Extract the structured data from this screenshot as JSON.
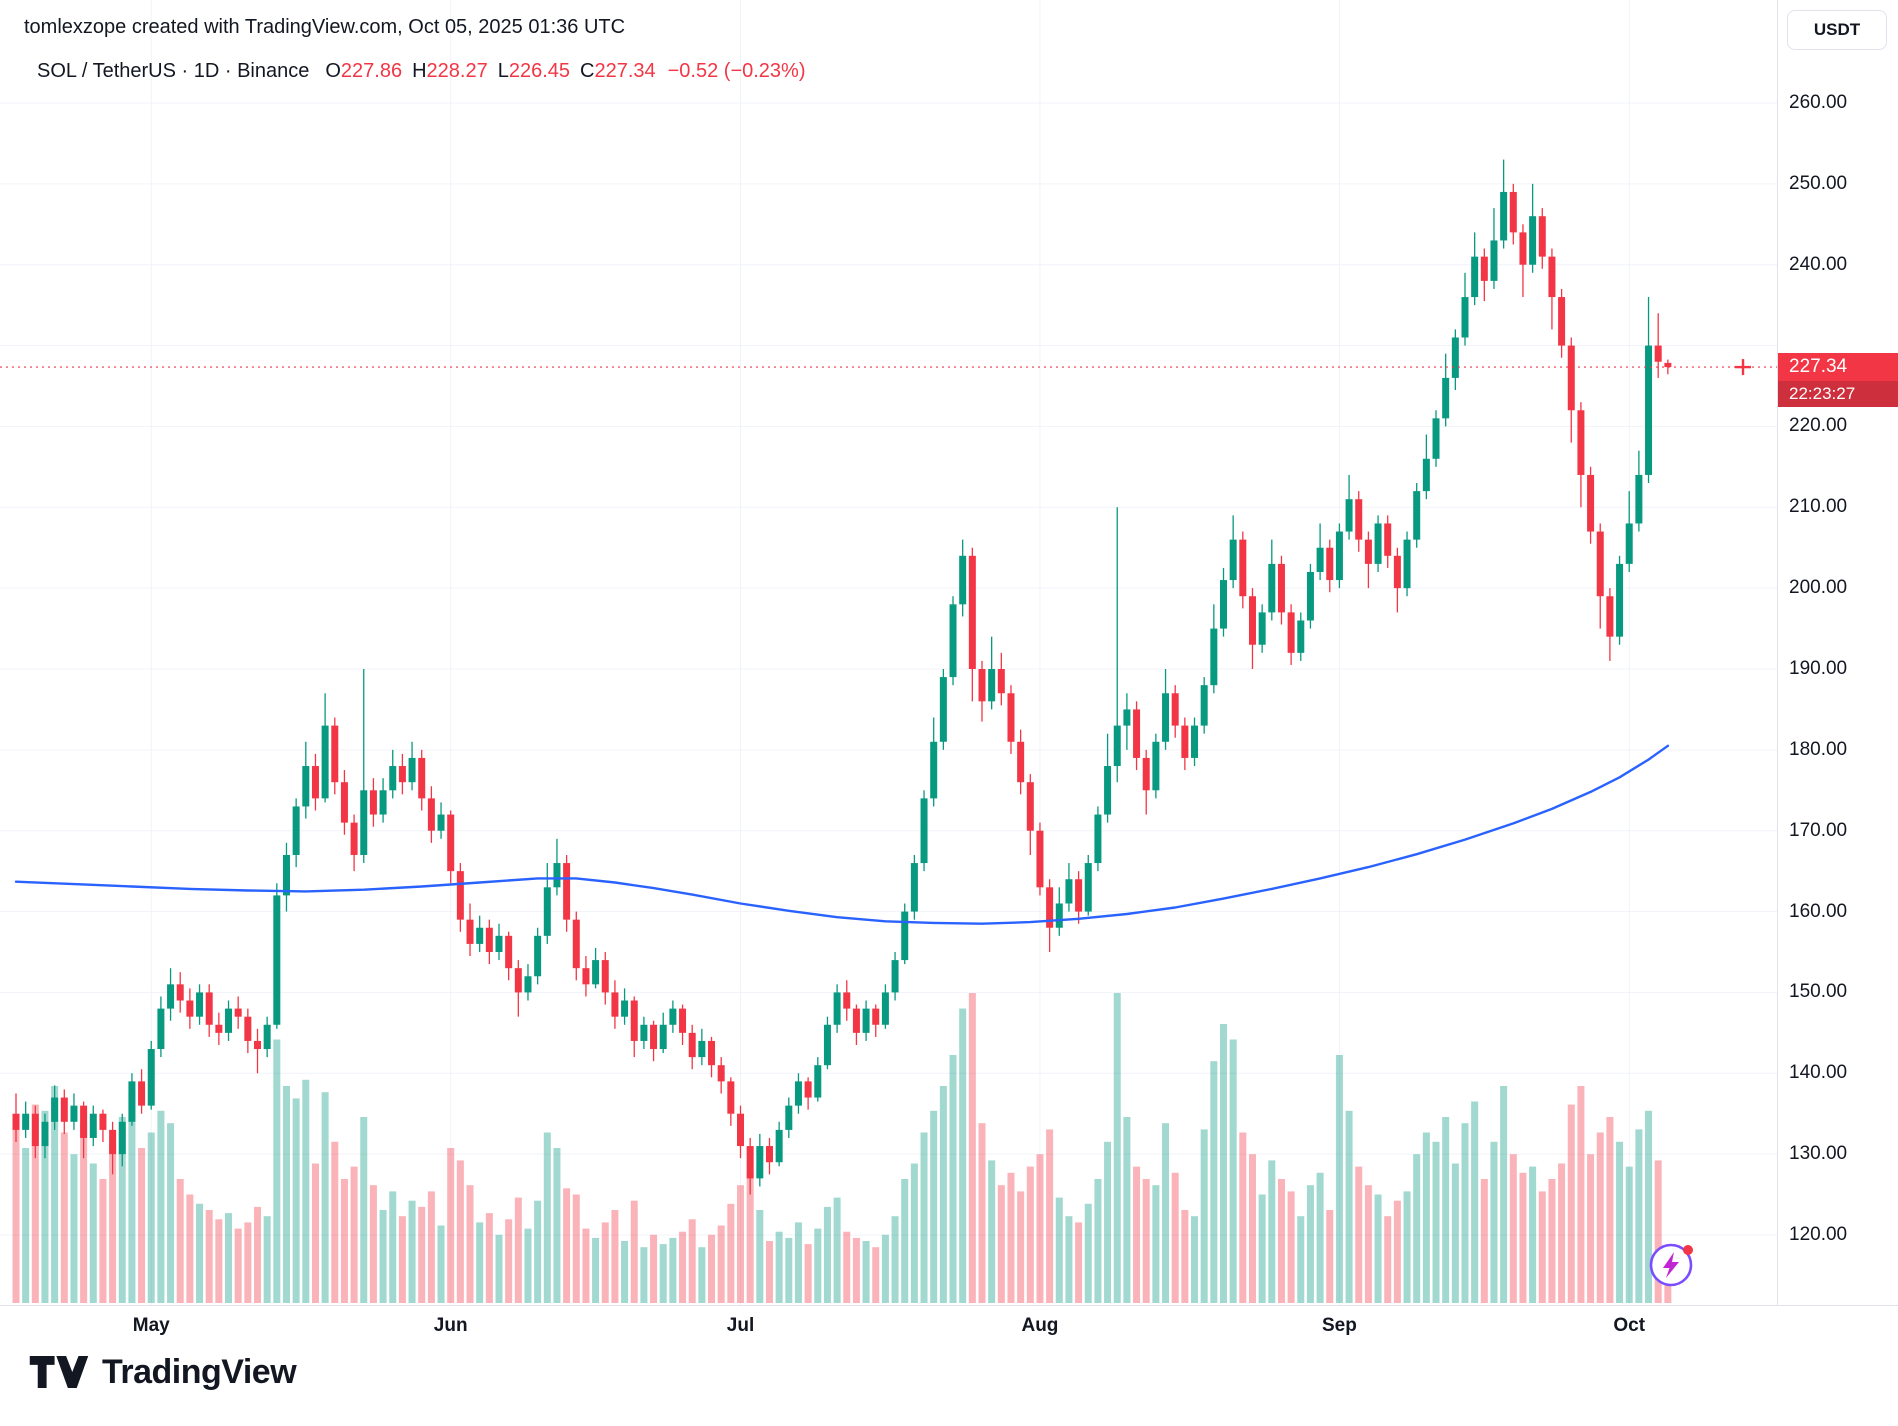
{
  "attribution": "tomlexzope created with TradingView.com, Oct 05, 2025 01:36 UTC",
  "legend": {
    "symbol_text": "SOL / TetherUS · 1D · Binance",
    "o_label": "O",
    "o": "227.86",
    "h_label": "H",
    "h": "228.27",
    "l_label": "L",
    "l": "226.45",
    "c_label": "C",
    "c": "227.34",
    "change": "−0.52 (−0.23%)"
  },
  "price_axis": {
    "currency": "USDT",
    "last_price": "227.34",
    "last_price_value": 227.34,
    "countdown": "22:23:27",
    "labels": [
      {
        "text": "260.00",
        "value": 260
      },
      {
        "text": "250.00",
        "value": 250
      },
      {
        "text": "240.00",
        "value": 240
      },
      {
        "text": "220.00",
        "value": 220
      },
      {
        "text": "210.00",
        "value": 210
      },
      {
        "text": "200.00",
        "value": 200
      },
      {
        "text": "190.00",
        "value": 190
      },
      {
        "text": "180.00",
        "value": 180
      },
      {
        "text": "170.00",
        "value": 170
      },
      {
        "text": "160.00",
        "value": 160
      },
      {
        "text": "150.00",
        "value": 150
      },
      {
        "text": "140.00",
        "value": 140
      },
      {
        "text": "130.00",
        "value": 130
      },
      {
        "text": "120.00",
        "value": 120
      }
    ]
  },
  "footer": {
    "brand": "TradingView"
  },
  "icons": {
    "flash": "lightning-bolt-circle",
    "logo": "tradingview-mark",
    "last_price_marker": "plus"
  },
  "colors": {
    "up": "#089981",
    "down": "#F23645",
    "vol_up": "rgba(8,153,129,0.38)",
    "vol_down": "rgba(242,54,69,0.38)",
    "ma": "#2962FF",
    "grid": "#f0f3fa",
    "axis_text": "#131722",
    "border": "#e0e3eb",
    "badge": "#F23645",
    "badge_dark": "#ce2f3c"
  },
  "chart_data": {
    "type": "candlestick",
    "symbol": "SOL / TetherUS",
    "exchange": "Binance",
    "interval": "1D",
    "start_date": "2025-04-17",
    "price_axis_range": {
      "min": 120,
      "max": 260,
      "step": 10
    },
    "last_bar": {
      "open": 227.86,
      "high": 228.27,
      "low": 226.45,
      "close": 227.34,
      "change": "−0.52",
      "change_pct": "−0.23%"
    },
    "months": [
      {
        "label": "May",
        "index": 14
      },
      {
        "label": "Jun",
        "index": 45
      },
      {
        "label": "Jul",
        "index": 75
      },
      {
        "label": "Aug",
        "index": 106
      },
      {
        "label": "Sep",
        "index": 137
      },
      {
        "label": "Oct",
        "index": 167
      }
    ],
    "columns": [
      "open",
      "high",
      "low",
      "close",
      "volume_rel_0_100"
    ],
    "candles": [
      [
        135,
        137.5,
        131.5,
        133,
        58
      ],
      [
        133,
        136.5,
        132,
        135,
        50
      ],
      [
        135,
        136,
        129.5,
        131,
        64
      ],
      [
        131,
        135,
        129.5,
        134,
        62
      ],
      [
        134,
        138.5,
        133,
        137,
        70
      ],
      [
        137,
        138,
        132.5,
        134,
        55
      ],
      [
        134,
        137.5,
        133,
        136,
        48
      ],
      [
        136,
        136.5,
        129.5,
        132,
        58
      ],
      [
        132,
        136,
        131,
        135,
        45
      ],
      [
        135,
        135.5,
        131.5,
        133,
        40
      ],
      [
        133,
        134,
        127.5,
        130,
        52
      ],
      [
        130,
        135,
        128.5,
        134,
        60
      ],
      [
        134,
        140,
        133.5,
        139,
        68
      ],
      [
        139,
        140.5,
        135,
        136,
        50
      ],
      [
        136,
        144,
        135.5,
        143,
        55
      ],
      [
        143,
        149.5,
        142,
        148,
        62
      ],
      [
        148,
        153,
        146.5,
        151,
        58
      ],
      [
        151,
        152.5,
        147.5,
        149,
        40
      ],
      [
        149,
        150.5,
        145.5,
        147,
        35
      ],
      [
        147,
        151,
        146,
        150,
        32
      ],
      [
        150,
        151,
        144.5,
        146,
        30
      ],
      [
        146,
        147.5,
        143.5,
        145,
        27
      ],
      [
        145,
        149,
        144,
        148,
        29
      ],
      [
        148,
        149.5,
        145.5,
        147,
        24
      ],
      [
        147,
        148,
        142.5,
        144,
        26
      ],
      [
        144,
        145.5,
        140,
        143,
        31
      ],
      [
        143,
        147,
        142,
        146,
        28
      ],
      [
        146,
        163.5,
        145.5,
        162,
        85
      ],
      [
        162,
        168.5,
        160,
        167,
        70
      ],
      [
        167,
        174,
        165.5,
        173,
        66
      ],
      [
        173,
        181,
        171.5,
        178,
        72
      ],
      [
        178,
        179.5,
        172.5,
        174,
        45
      ],
      [
        174,
        187,
        173.5,
        183,
        68
      ],
      [
        183,
        184,
        174.5,
        176,
        52
      ],
      [
        176,
        177.5,
        169.5,
        171,
        40
      ],
      [
        171,
        172,
        165,
        167,
        44
      ],
      [
        167,
        190,
        166,
        175,
        60
      ],
      [
        175,
        176.5,
        170.5,
        172,
        38
      ],
      [
        172,
        176.5,
        171,
        175,
        30
      ],
      [
        175,
        180,
        174,
        178,
        36
      ],
      [
        178,
        179.5,
        174.5,
        176,
        28
      ],
      [
        176,
        181,
        175,
        179,
        33
      ],
      [
        179,
        180,
        172.5,
        174,
        31
      ],
      [
        174,
        175.5,
        168.5,
        170,
        36
      ],
      [
        170,
        173.5,
        169,
        172,
        25
      ],
      [
        172,
        172.5,
        163.5,
        165,
        50
      ],
      [
        165,
        166,
        157.5,
        159,
        46
      ],
      [
        159,
        161,
        154.5,
        156,
        38
      ],
      [
        156,
        159.5,
        155,
        158,
        26
      ],
      [
        158,
        159,
        153.5,
        155,
        29
      ],
      [
        155,
        158.5,
        154,
        157,
        22
      ],
      [
        157,
        157.5,
        151.5,
        153,
        27
      ],
      [
        153,
        154,
        147,
        150,
        34
      ],
      [
        150,
        153.5,
        149,
        152,
        24
      ],
      [
        152,
        158,
        151,
        157,
        33
      ],
      [
        157,
        166,
        156,
        163,
        55
      ],
      [
        163,
        169,
        162,
        166,
        50
      ],
      [
        166,
        167,
        157.5,
        159,
        37
      ],
      [
        159,
        160,
        151.5,
        153,
        35
      ],
      [
        153,
        154.5,
        149.5,
        151,
        24
      ],
      [
        151,
        155.5,
        150.5,
        154,
        21
      ],
      [
        154,
        155,
        148.5,
        150,
        26
      ],
      [
        150,
        151.5,
        145.5,
        147,
        30
      ],
      [
        147,
        150.5,
        146,
        149,
        20
      ],
      [
        149,
        149.5,
        142,
        144,
        33
      ],
      [
        144,
        147,
        143,
        146,
        18
      ],
      [
        146,
        146.5,
        141.5,
        143,
        22
      ],
      [
        143,
        147.5,
        142.5,
        146,
        19
      ],
      [
        146,
        149,
        145,
        148,
        21
      ],
      [
        148,
        148.5,
        143.5,
        145,
        23
      ],
      [
        145,
        146,
        140.5,
        142,
        27
      ],
      [
        142,
        145.5,
        141,
        144,
        18
      ],
      [
        144,
        144.5,
        139.5,
        141,
        22
      ],
      [
        141,
        142,
        137.5,
        139,
        25
      ],
      [
        139,
        139.5,
        133.5,
        135,
        32
      ],
      [
        135,
        136,
        129.5,
        131,
        38
      ],
      [
        131,
        132,
        125,
        127,
        42
      ],
      [
        127,
        132.5,
        126,
        131,
        30
      ],
      [
        131,
        132,
        127.5,
        129,
        20
      ],
      [
        129,
        134,
        128.5,
        133,
        23
      ],
      [
        133,
        137,
        132,
        136,
        21
      ],
      [
        136,
        140,
        135,
        139,
        26
      ],
      [
        139,
        139.5,
        135.5,
        137,
        19
      ],
      [
        137,
        142,
        136.5,
        141,
        24
      ],
      [
        141,
        147,
        140.5,
        146,
        31
      ],
      [
        146,
        151,
        145,
        150,
        34
      ],
      [
        150,
        151.5,
        146.5,
        148,
        23
      ],
      [
        148,
        148.5,
        143.5,
        145,
        21
      ],
      [
        145,
        149,
        144,
        148,
        20
      ],
      [
        148,
        148.5,
        144.5,
        146,
        18
      ],
      [
        146,
        151,
        145.5,
        150,
        22
      ],
      [
        150,
        155,
        149,
        154,
        28
      ],
      [
        154,
        161,
        153.5,
        160,
        40
      ],
      [
        160,
        167,
        159,
        166,
        45
      ],
      [
        166,
        175,
        165,
        174,
        55
      ],
      [
        174,
        184,
        173,
        181,
        62
      ],
      [
        181,
        190,
        180,
        189,
        70
      ],
      [
        189,
        199,
        188,
        198,
        80
      ],
      [
        198,
        206,
        196.5,
        204,
        95
      ],
      [
        204,
        205,
        186,
        190,
        100
      ],
      [
        190,
        191,
        183.5,
        186,
        58
      ],
      [
        186,
        194,
        185,
        190,
        46
      ],
      [
        190,
        192,
        185.5,
        187,
        38
      ],
      [
        187,
        188,
        179.5,
        181,
        42
      ],
      [
        181,
        182.5,
        174.5,
        176,
        36
      ],
      [
        176,
        177,
        167,
        170,
        44
      ],
      [
        170,
        171,
        162,
        163,
        48
      ],
      [
        163,
        164,
        155,
        158,
        56
      ],
      [
        158,
        163,
        157,
        161,
        34
      ],
      [
        161,
        166,
        160,
        164,
        28
      ],
      [
        164,
        165,
        158.5,
        160,
        26
      ],
      [
        160,
        167,
        159.5,
        166,
        32
      ],
      [
        166,
        173,
        165,
        172,
        40
      ],
      [
        172,
        182,
        171,
        178,
        52
      ],
      [
        178,
        210,
        176,
        183,
        100
      ],
      [
        183,
        187,
        180,
        185,
        60
      ],
      [
        185,
        186,
        177.5,
        179,
        44
      ],
      [
        179,
        180,
        172,
        175,
        40
      ],
      [
        175,
        182,
        174,
        181,
        38
      ],
      [
        181,
        190,
        180,
        187,
        58
      ],
      [
        187,
        188,
        181.5,
        183,
        42
      ],
      [
        183,
        184,
        177.5,
        179,
        30
      ],
      [
        179,
        184,
        178,
        183,
        28
      ],
      [
        183,
        189,
        182,
        188,
        56
      ],
      [
        188,
        198,
        187,
        195,
        78
      ],
      [
        195,
        202.5,
        194,
        201,
        90
      ],
      [
        201,
        209,
        200,
        206,
        85
      ],
      [
        206,
        207,
        197.5,
        199,
        55
      ],
      [
        199,
        200,
        190,
        193,
        48
      ],
      [
        193,
        198,
        192,
        197,
        35
      ],
      [
        197,
        206,
        196,
        203,
        46
      ],
      [
        203,
        204,
        195.5,
        197,
        40
      ],
      [
        197,
        198,
        190.5,
        192,
        36
      ],
      [
        192,
        197,
        191,
        196,
        28
      ],
      [
        196,
        203,
        195,
        202,
        38
      ],
      [
        202,
        208,
        201,
        205,
        42
      ],
      [
        205,
        206,
        199.5,
        201,
        30
      ],
      [
        201,
        208,
        200,
        207,
        80
      ],
      [
        207,
        214,
        206,
        211,
        62
      ],
      [
        211,
        212,
        204.5,
        206,
        44
      ],
      [
        206,
        207,
        200,
        203,
        38
      ],
      [
        203,
        209,
        202,
        208,
        35
      ],
      [
        208,
        209,
        202.5,
        204,
        28
      ],
      [
        204,
        205,
        197,
        200,
        33
      ],
      [
        200,
        207,
        199,
        206,
        36
      ],
      [
        206,
        213,
        205,
        212,
        48
      ],
      [
        212,
        219,
        211,
        216,
        55
      ],
      [
        216,
        222,
        215,
        221,
        52
      ],
      [
        221,
        229,
        220,
        226,
        60
      ],
      [
        226,
        232,
        224.5,
        231,
        45
      ],
      [
        231,
        239,
        230,
        236,
        58
      ],
      [
        236,
        244,
        235,
        241,
        65
      ],
      [
        241,
        242,
        235.5,
        238,
        40
      ],
      [
        238,
        247,
        237,
        243,
        52
      ],
      [
        243,
        253,
        242,
        249,
        70
      ],
      [
        249,
        250,
        242.5,
        244,
        48
      ],
      [
        244,
        245,
        236,
        240,
        42
      ],
      [
        240,
        250,
        239,
        246,
        44
      ],
      [
        246,
        247,
        239.5,
        241,
        36
      ],
      [
        241,
        242,
        232,
        236,
        40
      ],
      [
        236,
        237,
        228.5,
        230,
        45
      ],
      [
        230,
        231,
        218,
        222,
        64
      ],
      [
        222,
        223,
        210,
        214,
        70
      ],
      [
        214,
        215,
        205.5,
        207,
        48
      ],
      [
        207,
        208,
        195,
        199,
        55
      ],
      [
        199,
        200,
        191,
        194,
        60
      ],
      [
        194,
        204,
        193,
        203,
        52
      ],
      [
        203,
        212,
        202,
        208,
        44
      ],
      [
        208,
        217,
        207,
        214,
        56
      ],
      [
        214,
        236,
        213,
        230,
        62
      ],
      [
        230,
        234,
        226,
        228,
        46
      ],
      [
        227.86,
        228.27,
        226.45,
        227.34,
        12
      ]
    ],
    "ma": {
      "name": "MA",
      "color": "#2962FF",
      "points": [
        [
          0,
          163.7
        ],
        [
          6,
          163.4
        ],
        [
          12,
          163.1
        ],
        [
          18,
          162.8
        ],
        [
          24,
          162.6
        ],
        [
          30,
          162.5
        ],
        [
          36,
          162.7
        ],
        [
          42,
          163.1
        ],
        [
          48,
          163.6
        ],
        [
          54,
          164.1
        ],
        [
          58,
          164.1
        ],
        [
          62,
          163.6
        ],
        [
          66,
          162.9
        ],
        [
          70,
          162.1
        ],
        [
          75,
          161.0
        ],
        [
          80,
          160.1
        ],
        [
          85,
          159.3
        ],
        [
          90,
          158.8
        ],
        [
          95,
          158.6
        ],
        [
          100,
          158.5
        ],
        [
          105,
          158.7
        ],
        [
          110,
          159.1
        ],
        [
          115,
          159.7
        ],
        [
          120,
          160.5
        ],
        [
          125,
          161.6
        ],
        [
          130,
          162.8
        ],
        [
          135,
          164.1
        ],
        [
          140,
          165.5
        ],
        [
          145,
          167.1
        ],
        [
          150,
          168.9
        ],
        [
          155,
          170.9
        ],
        [
          159,
          172.7
        ],
        [
          163,
          174.8
        ],
        [
          166,
          176.6
        ],
        [
          169,
          178.8
        ],
        [
          171,
          180.5
        ]
      ]
    }
  }
}
